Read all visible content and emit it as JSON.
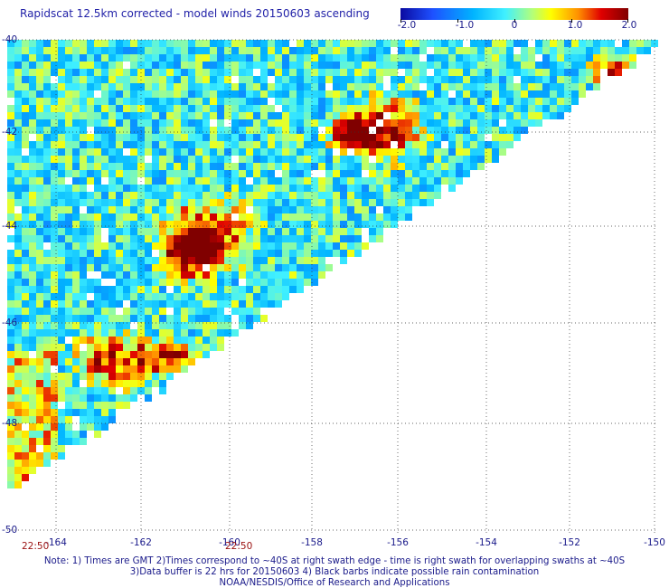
{
  "title": "Rapidscat 12.5km corrected - model winds 20150603 ascending",
  "colorbar": {
    "range": [
      -2.0,
      2.0
    ],
    "labels": [
      "-2.0",
      "-1.0",
      "0",
      "1.0",
      "2.0"
    ],
    "colors": [
      "#0a0aa0",
      "#1e5aff",
      "#00c8ff",
      "#7dffa0",
      "#ffff00",
      "#ff8000",
      "#e00000",
      "#800000"
    ]
  },
  "map": {
    "lat_labels": [
      "-40",
      "-42",
      "-44",
      "-46",
      "-48",
      "-50"
    ],
    "lon_labels": [
      "-164",
      "-162",
      "-160",
      "-158",
      "-156",
      "-154",
      "-152",
      "-150"
    ],
    "time_labels": [
      "22:50",
      "22:50"
    ],
    "swath_edge_direction": "diagonal from lower-left to upper-right",
    "hotspots_note": "Dark red patches near -157.5/-42, -161/-44.5, -162/-46.8, -151.5/-40.7"
  },
  "notes": {
    "line1": "Note: 1) Times are GMT 2)Times correspond to ~40S at right swath edge - time is right swath for overlapping swaths at ~40S",
    "line2": "3)Data buffer is 22 hrs for 20150603 4) Black barbs indicate possible rain contamination",
    "line3": "NOAA/NESDIS/Office of Research and Applications"
  }
}
